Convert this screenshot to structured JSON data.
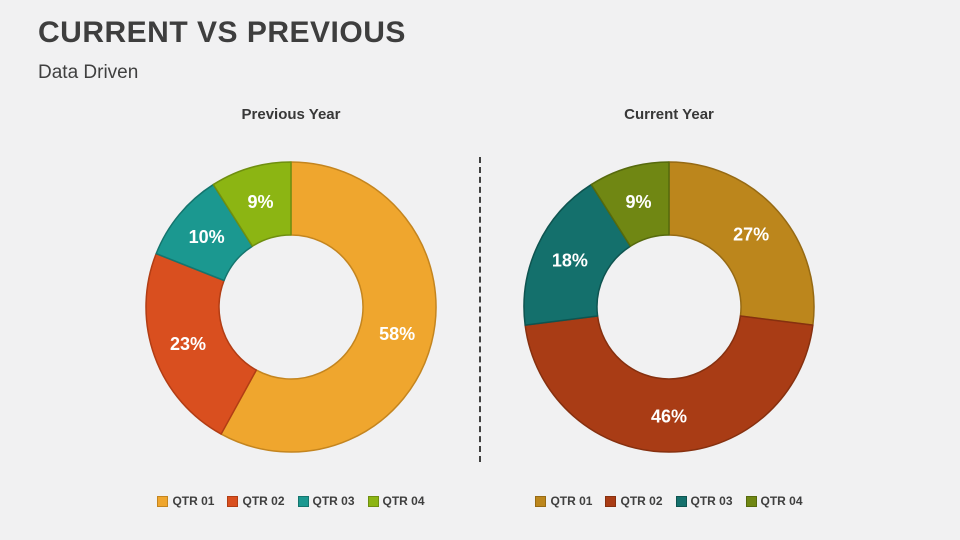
{
  "slide": {
    "title": "CURRENT VS PREVIOUS",
    "subtitle": "Data Driven",
    "background_color": "#f1f1f2",
    "divider_color": "#404040"
  },
  "chart_data": [
    {
      "type": "pie",
      "subtype": "donut",
      "title": "Previous Year",
      "categories": [
        "QTR 01",
        "QTR 02",
        "QTR 03",
        "QTR 04"
      ],
      "values": [
        58,
        23,
        10,
        9
      ],
      "labels": [
        "58%",
        "23%",
        "10%",
        "9%"
      ],
      "colors": [
        "#efa62e",
        "#d94f1f",
        "#1b9890",
        "#8cb513"
      ],
      "stroke_colors": [
        "#c4851f",
        "#b23d14",
        "#14756e",
        "#6f8f10"
      ],
      "label_color": "#ffffff",
      "legend_position": "bottom",
      "start_angle_deg": 0,
      "direction": "clockwise"
    },
    {
      "type": "pie",
      "subtype": "donut",
      "title": "Current Year",
      "categories": [
        "QTR 01",
        "QTR 02",
        "QTR 03",
        "QTR 04"
      ],
      "values": [
        27,
        46,
        18,
        9
      ],
      "labels": [
        "27%",
        "46%",
        "18%",
        "9%"
      ],
      "colors": [
        "#bc861c",
        "#a93c15",
        "#14706c",
        "#708713"
      ],
      "stroke_colors": [
        "#966a14",
        "#86300f",
        "#0e5450",
        "#566a0d"
      ],
      "label_color": "#ffffff",
      "legend_position": "bottom",
      "start_angle_deg": 0,
      "direction": "clockwise"
    }
  ]
}
